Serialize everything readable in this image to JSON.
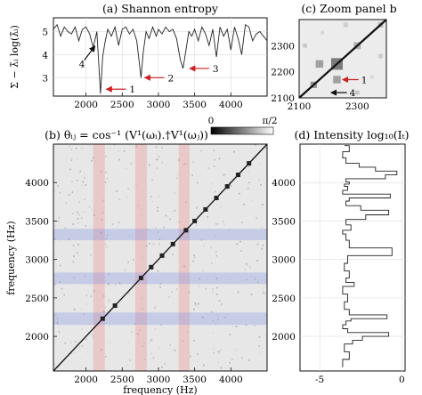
{
  "chart_data": [
    {
      "id": "a",
      "type": "line",
      "title": "(a) Shannon entropy",
      "ylabel": "Σ − λ̃ᵢ log(λ̃ᵢ)",
      "xlim": [
        1550,
        4500
      ],
      "ylim": [
        2.2,
        5.6
      ],
      "xticks": [
        2000,
        2500,
        3000,
        3500,
        4000
      ],
      "yticks": [
        3,
        4,
        5
      ],
      "x": [
        1550,
        1600,
        1650,
        1700,
        1750,
        1800,
        1850,
        1900,
        1950,
        2000,
        2050,
        2100,
        2150,
        2200,
        2230,
        2260,
        2300,
        2350,
        2400,
        2450,
        2500,
        2550,
        2600,
        2650,
        2700,
        2730,
        2760,
        2790,
        2830,
        2870,
        2920,
        2970,
        3000,
        3050,
        3100,
        3150,
        3200,
        3250,
        3300,
        3340,
        3380,
        3420,
        3460,
        3500,
        3550,
        3600,
        3650,
        3700,
        3750,
        3800,
        3850,
        3900,
        3950,
        4000,
        4050,
        4100,
        4150,
        4200,
        4250,
        4300,
        4350,
        4400,
        4450,
        4500
      ],
      "y": [
        5.1,
        5.3,
        4.8,
        5.2,
        5.0,
        4.9,
        5.2,
        4.6,
        5.1,
        5.2,
        4.9,
        4.3,
        5.0,
        2.3,
        3.9,
        4.5,
        5.1,
        4.8,
        5.2,
        4.4,
        5.1,
        5.2,
        4.9,
        5.1,
        4.6,
        3.8,
        3.0,
        4.1,
        5.0,
        4.7,
        5.2,
        4.8,
        5.1,
        4.9,
        5.2,
        5.0,
        5.1,
        4.7,
        3.8,
        3.4,
        4.2,
        5.0,
        4.8,
        5.1,
        4.6,
        5.2,
        4.9,
        4.4,
        5.1,
        3.9,
        5.2,
        4.8,
        5.1,
        4.2,
        5.2,
        4.7,
        4.0,
        5.3,
        5.2,
        4.6,
        4.9,
        5.0,
        4.8,
        4.6
      ],
      "annotations": [
        {
          "text": "1",
          "x": 2230,
          "y": 2.5,
          "color": "#cc1f1f"
        },
        {
          "text": "2",
          "x": 2760,
          "y": 3.0,
          "color": "#cc1f1f"
        },
        {
          "text": "3",
          "x": 3380,
          "y": 3.4,
          "color": "#cc1f1f"
        },
        {
          "text": "4",
          "x": 2100,
          "y": 4.3,
          "color": "#111111"
        }
      ]
    },
    {
      "id": "c",
      "type": "heatmap",
      "title": "(c) Zoom panel b",
      "xlim": [
        2100,
        2400
      ],
      "ylim": [
        2100,
        2400
      ],
      "xticks": [
        2100,
        2300
      ],
      "yticks": [
        2100,
        2200,
        2300
      ],
      "annotations": [
        {
          "text": "1",
          "x": 2240,
          "y": 2170,
          "color": "#cc1f1f"
        },
        {
          "text": "4",
          "x": 2200,
          "y": 2120,
          "color": "#111111"
        }
      ]
    },
    {
      "id": "b",
      "type": "heatmap",
      "title": "(b) θᵢⱼ = cos⁻¹ (V¹(ωᵢ).†V¹(ωⱼ))",
      "xlabel": "frequency (Hz)",
      "ylabel": "frequency (Hz)",
      "xlim": [
        1550,
        4500
      ],
      "ylim": [
        1550,
        4500
      ],
      "xticks": [
        2000,
        2500,
        3000,
        3500,
        4000
      ],
      "yticks": [
        2000,
        2500,
        3000,
        3500,
        4000
      ],
      "colorbar": {
        "min_label": "0",
        "max_label": "π/2"
      },
      "bands_vertical": [
        [
          2100,
          2260
        ],
        [
          2680,
          2840
        ],
        [
          3280,
          3430
        ]
      ],
      "bands_horizontal": [
        [
          2150,
          2310
        ],
        [
          2680,
          2830
        ],
        [
          3250,
          3400
        ]
      ],
      "diagonal_dots": [
        2230,
        2400,
        2760,
        2900,
        3050,
        3200,
        3380,
        3500,
        3650,
        3800,
        3950,
        4100,
        4250
      ]
    },
    {
      "id": "d",
      "type": "line",
      "title": "(d) Intensity log₁₀(Iₜ)",
      "xlim": [
        -6.2,
        0.2
      ],
      "ylim": [
        1550,
        4500
      ],
      "xticks": [
        -5,
        0
      ],
      "yticks": [
        2000,
        2500,
        3000,
        3500,
        4000
      ],
      "x": [
        -3.6,
        -3.2,
        -3.5,
        -3.0,
        -2.4,
        -0.8,
        -3.3,
        -3.6,
        -3.4,
        -3.1,
        -0.9,
        -3.2,
        -3.5,
        -3.3,
        -3.6,
        -2.9,
        -3.4,
        -3.2,
        -3.5,
        -3.3,
        -0.6,
        -3.2,
        -3.4,
        -3.6,
        -3.1,
        -3.4,
        -2.2,
        -0.8,
        -2.5,
        -3.4,
        -3.2,
        -0.7,
        -3.6,
        -3.3,
        -3.5,
        -3.2,
        -3.4,
        -1.0,
        -0.3,
        -1.6,
        -2.6,
        -3.4,
        -3.6,
        -3.2,
        -3.5
      ],
      "y": [
        1600,
        1700,
        1800,
        1900,
        1950,
        2000,
        2050,
        2100,
        2150,
        2200,
        2230,
        2280,
        2350,
        2450,
        2550,
        2650,
        2700,
        2760,
        2850,
        2950,
        3050,
        3150,
        3250,
        3330,
        3380,
        3450,
        3520,
        3580,
        3640,
        3700,
        3760,
        3800,
        3850,
        3900,
        3950,
        3980,
        4010,
        4050,
        4100,
        4150,
        4200,
        4250,
        4320,
        4400,
        4480
      ]
    }
  ]
}
